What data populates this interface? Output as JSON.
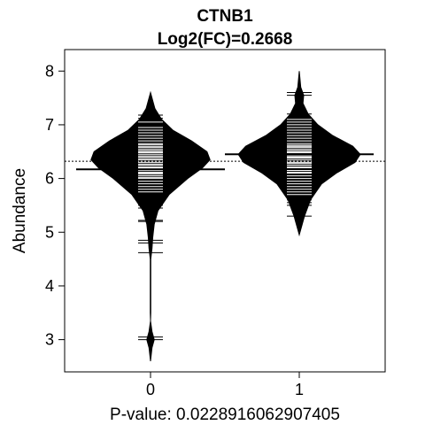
{
  "chart_data": {
    "type": "beanplot",
    "title": "CTNB1",
    "subtitle": "Log2(FC)=0.2668",
    "ylabel": "Abundance",
    "xlabel": "P-value: 0.0228916062907405",
    "categories": [
      "0",
      "1"
    ],
    "x_ticks": [
      "0",
      "1"
    ],
    "ylim": [
      2.4,
      8.4
    ],
    "y_ticks": [
      3,
      4,
      5,
      6,
      7,
      8
    ],
    "overall_mean": 6.32,
    "groups": [
      {
        "name": "0",
        "mean": 6.17,
        "density": [
          [
            2.6,
            0.0
          ],
          [
            2.85,
            0.02
          ],
          [
            3.0,
            0.05
          ],
          [
            3.15,
            0.02
          ],
          [
            3.35,
            0.0
          ],
          [
            3.5,
            0.003
          ],
          [
            4.0,
            0.003
          ],
          [
            4.5,
            0.004
          ],
          [
            4.7,
            0.02
          ],
          [
            4.9,
            0.03
          ],
          [
            5.15,
            0.05
          ],
          [
            5.4,
            0.1
          ],
          [
            5.7,
            0.25
          ],
          [
            6.0,
            0.5
          ],
          [
            6.2,
            0.7
          ],
          [
            6.35,
            0.8
          ],
          [
            6.5,
            0.76
          ],
          [
            6.7,
            0.55
          ],
          [
            6.9,
            0.3
          ],
          [
            7.1,
            0.15
          ],
          [
            7.3,
            0.06
          ],
          [
            7.6,
            0.0
          ]
        ],
        "points": [
          3.0,
          3.05,
          4.62,
          4.8,
          4.85,
          5.2,
          5.22,
          5.45,
          5.5,
          5.75,
          5.8,
          5.85,
          5.9,
          5.95,
          6.0,
          6.02,
          6.05,
          6.08,
          6.1,
          6.12,
          6.15,
          6.18,
          6.2,
          6.22,
          6.25,
          6.27,
          6.3,
          6.32,
          6.35,
          6.37,
          6.4,
          6.42,
          6.45,
          6.48,
          6.5,
          6.52,
          6.55,
          6.58,
          6.6,
          6.63,
          6.65,
          6.7,
          6.75,
          6.8,
          6.85,
          6.9,
          6.95,
          7.05,
          7.12,
          7.18
        ]
      },
      {
        "name": "1",
        "mean": 6.45,
        "density": [
          [
            4.95,
            0.0
          ],
          [
            5.3,
            0.07
          ],
          [
            5.6,
            0.15
          ],
          [
            5.9,
            0.3
          ],
          [
            6.1,
            0.5
          ],
          [
            6.3,
            0.75
          ],
          [
            6.45,
            0.82
          ],
          [
            6.6,
            0.72
          ],
          [
            6.8,
            0.45
          ],
          [
            7.0,
            0.25
          ],
          [
            7.2,
            0.12
          ],
          [
            7.4,
            0.05
          ],
          [
            7.55,
            0.06
          ],
          [
            7.7,
            0.02
          ],
          [
            8.0,
            0.0
          ]
        ],
        "points": [
          5.3,
          5.5,
          5.55,
          5.6,
          5.7,
          5.75,
          5.8,
          5.85,
          5.9,
          5.95,
          6.0,
          6.05,
          6.1,
          6.12,
          6.15,
          6.2,
          6.22,
          6.25,
          6.28,
          6.3,
          6.32,
          6.35,
          6.38,
          6.4,
          6.42,
          6.45,
          6.48,
          6.5,
          6.52,
          6.55,
          6.58,
          6.6,
          6.62,
          6.65,
          6.7,
          6.75,
          6.8,
          6.85,
          6.9,
          6.95,
          7.0,
          7.05,
          7.1,
          7.2,
          7.55,
          7.6
        ]
      }
    ],
    "grid": false,
    "legend": "none"
  }
}
